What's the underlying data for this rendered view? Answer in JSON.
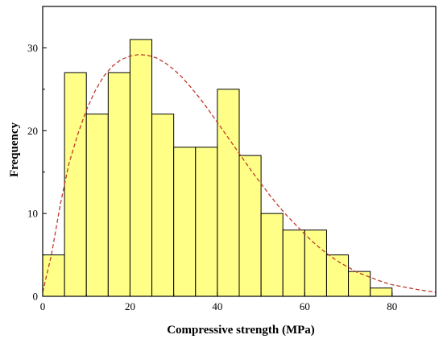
{
  "chart_data": {
    "type": "bar",
    "subtype": "histogram",
    "title": "",
    "xlabel": "Compressive strength (MPa)",
    "ylabel": "Frequency",
    "xlim": [
      0,
      90
    ],
    "ylim": [
      0,
      35
    ],
    "x_ticks": [
      0,
      20,
      40,
      60,
      80
    ],
    "y_ticks": [
      0,
      10,
      20,
      30
    ],
    "bin_width": 5,
    "bins": [
      {
        "start": 0,
        "end": 5,
        "value": 5
      },
      {
        "start": 5,
        "end": 10,
        "value": 27
      },
      {
        "start": 10,
        "end": 15,
        "value": 22
      },
      {
        "start": 15,
        "end": 20,
        "value": 27
      },
      {
        "start": 20,
        "end": 25,
        "value": 31
      },
      {
        "start": 25,
        "end": 30,
        "value": 22
      },
      {
        "start": 30,
        "end": 35,
        "value": 18
      },
      {
        "start": 35,
        "end": 40,
        "value": 18
      },
      {
        "start": 40,
        "end": 45,
        "value": 25
      },
      {
        "start": 45,
        "end": 50,
        "value": 17
      },
      {
        "start": 50,
        "end": 55,
        "value": 10
      },
      {
        "start": 55,
        "end": 60,
        "value": 8
      },
      {
        "start": 60,
        "end": 65,
        "value": 8
      },
      {
        "start": 65,
        "end": 70,
        "value": 5
      },
      {
        "start": 70,
        "end": 75,
        "value": 3
      },
      {
        "start": 75,
        "end": 80,
        "value": 1
      }
    ],
    "fit_curve": {
      "style": "dashed",
      "points": [
        [
          0,
          0.5
        ],
        [
          2,
          5
        ],
        [
          4,
          11
        ],
        [
          6,
          16
        ],
        [
          8,
          19.5
        ],
        [
          10,
          22.5
        ],
        [
          12,
          24.8
        ],
        [
          14,
          26.6
        ],
        [
          16,
          27.8
        ],
        [
          18,
          28.6
        ],
        [
          20,
          29.0
        ],
        [
          22,
          29.2
        ],
        [
          24,
          29.1
        ],
        [
          26,
          28.8
        ],
        [
          28,
          28.2
        ],
        [
          30,
          27.4
        ],
        [
          32,
          26.4
        ],
        [
          34,
          25.2
        ],
        [
          36,
          23.9
        ],
        [
          38,
          22.5
        ],
        [
          40,
          21.0
        ],
        [
          42,
          19.5
        ],
        [
          44,
          18.0
        ],
        [
          46,
          16.5
        ],
        [
          48,
          15.0
        ],
        [
          50,
          13.6
        ],
        [
          52,
          12.2
        ],
        [
          54,
          10.9
        ],
        [
          56,
          9.7
        ],
        [
          58,
          8.6
        ],
        [
          60,
          7.5
        ],
        [
          62,
          6.5
        ],
        [
          64,
          5.6
        ],
        [
          66,
          4.8
        ],
        [
          68,
          4.1
        ],
        [
          70,
          3.5
        ],
        [
          72,
          2.9
        ],
        [
          74,
          2.5
        ],
        [
          76,
          2.1
        ],
        [
          78,
          1.7
        ],
        [
          80,
          1.4
        ],
        [
          82,
          1.2
        ],
        [
          84,
          1.0
        ],
        [
          86,
          0.8
        ],
        [
          88,
          0.65
        ],
        [
          90,
          0.5
        ]
      ]
    },
    "colors": {
      "bar_fill": "#ffff88",
      "bar_stroke": "#000000",
      "curve": "#c0392b",
      "axis": "#000000"
    },
    "grid": false,
    "legend": "none"
  }
}
